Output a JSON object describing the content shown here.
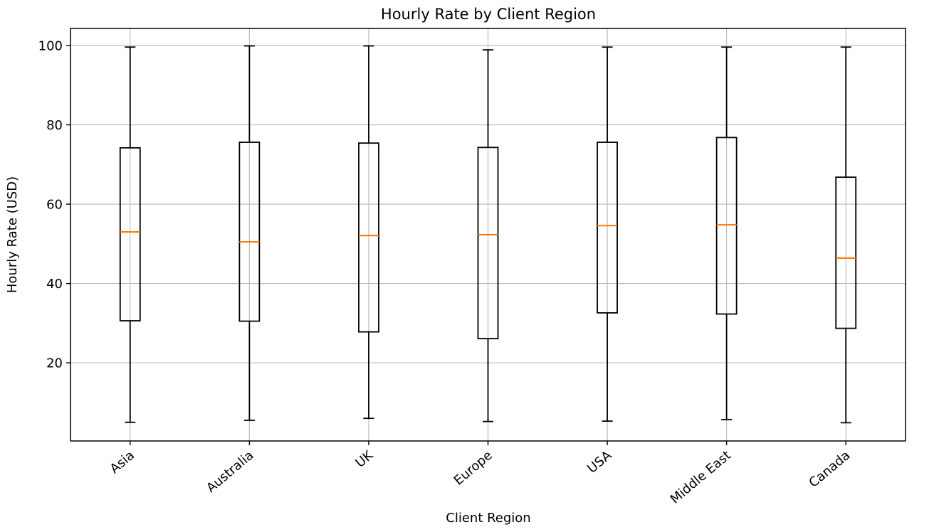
{
  "chart_data": {
    "type": "boxplot",
    "title": "Hourly Rate by Client Region",
    "xlabel": "Client Region",
    "ylabel": "Hourly Rate (USD)",
    "categories": [
      "Asia",
      "Australia",
      "UK",
      "Europe",
      "USA",
      "Middle East",
      "Canada"
    ],
    "series": [
      {
        "name": "Asia",
        "whisker_low": 5.0,
        "q1": 30.6,
        "median": 53.0,
        "q3": 74.2,
        "whisker_high": 99.6
      },
      {
        "name": "Australia",
        "whisker_low": 5.5,
        "q1": 30.5,
        "median": 50.5,
        "q3": 75.6,
        "whisker_high": 99.9
      },
      {
        "name": "UK",
        "whisker_low": 6.0,
        "q1": 27.8,
        "median": 52.1,
        "q3": 75.4,
        "whisker_high": 99.9
      },
      {
        "name": "Europe",
        "whisker_low": 5.2,
        "q1": 26.1,
        "median": 52.3,
        "q3": 74.3,
        "whisker_high": 98.9
      },
      {
        "name": "USA",
        "whisker_low": 5.3,
        "q1": 32.6,
        "median": 54.6,
        "q3": 75.6,
        "whisker_high": 99.6
      },
      {
        "name": "Middle East",
        "whisker_low": 5.7,
        "q1": 32.3,
        "median": 54.8,
        "q3": 76.8,
        "whisker_high": 99.6
      },
      {
        "name": "Canada",
        "whisker_low": 4.9,
        "q1": 28.7,
        "median": 46.4,
        "q3": 66.8,
        "whisker_high": 99.6
      }
    ],
    "y_ticks": [
      20,
      40,
      60,
      80,
      100
    ],
    "ylim": [
      0.3,
      104.3
    ],
    "grid": true,
    "x_tick_rotation_deg": 40,
    "colors": {
      "median": "#ff7f0e",
      "box": "#000000",
      "whisker": "#000000",
      "grid": "#b8b8b8",
      "spine": "#000000",
      "background": "#ffffff"
    }
  }
}
